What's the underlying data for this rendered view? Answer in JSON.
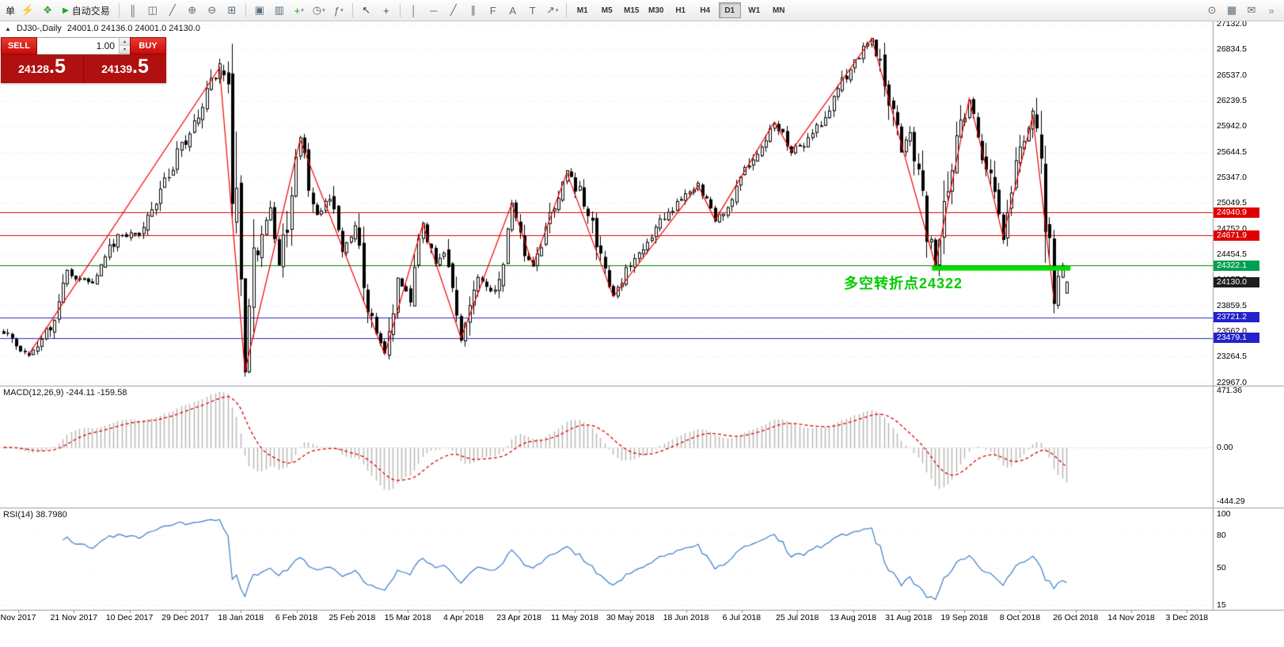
{
  "toolbar": {
    "order_label": "单",
    "autotrade_label": "自动交易",
    "timeframes": [
      "M1",
      "M5",
      "M15",
      "M30",
      "H1",
      "H4",
      "D1",
      "W1",
      "MN"
    ],
    "active_timeframe": "D1",
    "items": [
      {
        "type": "label",
        "name": "order-menu-label",
        "text": "单"
      },
      {
        "type": "icon",
        "name": "new-order-icon",
        "glyph": "⚡",
        "color": "#d09000"
      },
      {
        "type": "icon",
        "name": "expert-advisors-icon",
        "glyph": "❖",
        "color": "#3aa13a"
      },
      {
        "type": "autotrade",
        "name": "autotrade-button",
        "glyph": "▶",
        "color": "#18a818"
      },
      {
        "type": "sep"
      },
      {
        "type": "icon",
        "name": "bar-chart-icon",
        "glyph": "║",
        "color": "#5a6b7a"
      },
      {
        "type": "icon",
        "name": "candlestick-chart-icon",
        "glyph": "◫",
        "color": "#5a6b7a"
      },
      {
        "type": "icon",
        "name": "line-chart-icon",
        "glyph": "╱",
        "color": "#5a6b7a"
      },
      {
        "type": "icon",
        "name": "zoom-in-icon",
        "glyph": "⊕",
        "color": "#5a6b7a"
      },
      {
        "type": "icon",
        "name": "zoom-out-icon",
        "glyph": "⊖",
        "color": "#5a6b7a"
      },
      {
        "type": "icon",
        "name": "tile-windows-icon",
        "glyph": "⊞",
        "color": "#5a6b7a"
      },
      {
        "type": "sep"
      },
      {
        "type": "icon",
        "name": "arrange-auto-icon",
        "glyph": "▣",
        "color": "#5a6b7a"
      },
      {
        "type": "icon",
        "name": "arrange-windows-icon",
        "glyph": "▥",
        "color": "#5a6b7a"
      },
      {
        "type": "icon",
        "name": "new-chart-icon",
        "glyph": "+",
        "color": "#18a818",
        "caret": true
      },
      {
        "type": "icon",
        "name": "periods-icon",
        "glyph": "◷",
        "color": "#5a6b7a",
        "caret": true
      },
      {
        "type": "icon",
        "name": "indicators-icon",
        "glyph": "ƒ",
        "color": "#5a6b7a",
        "caret": true
      },
      {
        "type": "sep"
      },
      {
        "type": "icon",
        "name": "cursor-icon",
        "glyph": "↖",
        "color": "#444444"
      },
      {
        "type": "icon",
        "name": "crosshair-icon",
        "glyph": "+",
        "color": "#444444"
      },
      {
        "type": "sep"
      },
      {
        "type": "icon",
        "name": "vertical-line-icon",
        "glyph": "│",
        "color": "#5a6b7a"
      },
      {
        "type": "icon",
        "name": "horizontal-line-icon",
        "glyph": "─",
        "color": "#5a6b7a"
      },
      {
        "type": "icon",
        "name": "trendline-icon",
        "glyph": "╱",
        "color": "#5a6b7a"
      },
      {
        "type": "icon",
        "name": "channel-icon",
        "glyph": "∥",
        "color": "#5a6b7a"
      },
      {
        "type": "icon",
        "name": "fibonacci-icon",
        "glyph": "F",
        "color": "#5a6b7a"
      },
      {
        "type": "icon",
        "name": "text-icon",
        "glyph": "A",
        "color": "#5a6b7a"
      },
      {
        "type": "icon",
        "name": "label-icon",
        "glyph": "T",
        "color": "#5a6b7a"
      },
      {
        "type": "icon",
        "name": "arrows-icon",
        "glyph": "↗",
        "color": "#5a6b7a",
        "caret": true
      },
      {
        "type": "sep"
      },
      {
        "type": "timeframes"
      },
      {
        "type": "spacer"
      },
      {
        "type": "icon",
        "name": "search-icon",
        "glyph": "⊙",
        "color": "#5a6b7a"
      },
      {
        "type": "icon",
        "name": "data-window-icon",
        "glyph": "▦",
        "color": "#5a6b7a"
      },
      {
        "type": "icon",
        "name": "chat-icon",
        "glyph": "✉",
        "color": "#5a6b7a"
      },
      {
        "type": "icon",
        "name": "toolbar-overflow-icon",
        "glyph": "»",
        "color": "#888888"
      }
    ]
  },
  "chart_header": {
    "toggle_icon": "▲",
    "symbol": "DJ30-,Daily",
    "ohlc": "24001.0 24136.0 24001.0 24130.0"
  },
  "trade_panel": {
    "sell_label": "SELL",
    "buy_label": "BUY",
    "volume": "1.00",
    "sell_price_small": "24128",
    "sell_price_big": ".5",
    "buy_price_small": "24139",
    "buy_price_big": ".5"
  },
  "annotation": {
    "text": "多空转折点24322",
    "color": "#00cc00"
  },
  "indicators": {
    "macd_label": "MACD(12,26,9) -244.11 -159.58",
    "rsi_label": "RSI(14) 38.7980"
  },
  "chart_data": {
    "type": "candlestick",
    "symbol": "DJ30-",
    "timeframe": "Daily",
    "last_candle": {
      "open": 24001.0,
      "high": 24136.0,
      "low": 24001.0,
      "close": 24130.0
    },
    "bid": 24128.5,
    "ask": 24139.5,
    "candle_count": 252,
    "price_path_anchors": [
      [
        0,
        23560
      ],
      [
        3,
        23400
      ],
      [
        6,
        23290
      ],
      [
        10,
        23510
      ],
      [
        15,
        24230
      ],
      [
        21,
        24100
      ],
      [
        27,
        24700
      ],
      [
        32,
        24660
      ],
      [
        37,
        25200
      ],
      [
        45,
        26000
      ],
      [
        51,
        26620
      ],
      [
        53,
        26200
      ],
      [
        55,
        24700
      ],
      [
        57,
        23100
      ],
      [
        59,
        24450
      ],
      [
        63,
        24980
      ],
      [
        65,
        24300
      ],
      [
        70,
        25780
      ],
      [
        74,
        24900
      ],
      [
        77,
        25140
      ],
      [
        80,
        24520
      ],
      [
        83,
        24740
      ],
      [
        87,
        23620
      ],
      [
        90,
        23290
      ],
      [
        93,
        24080
      ],
      [
        96,
        23990
      ],
      [
        99,
        24800
      ],
      [
        102,
        24310
      ],
      [
        104,
        24520
      ],
      [
        108,
        23480
      ],
      [
        112,
        24180
      ],
      [
        116,
        24010
      ],
      [
        120,
        25040
      ],
      [
        123,
        24520
      ],
      [
        125,
        24330
      ],
      [
        129,
        24900
      ],
      [
        133,
        25400
      ],
      [
        137,
        25080
      ],
      [
        144,
        23960
      ],
      [
        148,
        24330
      ],
      [
        152,
        24580
      ],
      [
        156,
        24880
      ],
      [
        160,
        25080
      ],
      [
        164,
        25250
      ],
      [
        168,
        24850
      ],
      [
        172,
        25060
      ],
      [
        176,
        25480
      ],
      [
        182,
        25990
      ],
      [
        186,
        25650
      ],
      [
        190,
        25760
      ],
      [
        194,
        26060
      ],
      [
        198,
        26440
      ],
      [
        202,
        26740
      ],
      [
        205,
        26960
      ],
      [
        207,
        26680
      ],
      [
        209,
        26280
      ],
      [
        212,
        25640
      ],
      [
        214,
        25890
      ],
      [
        217,
        25020
      ],
      [
        220,
        24330
      ],
      [
        223,
        25280
      ],
      [
        226,
        25880
      ],
      [
        228,
        26260
      ],
      [
        230,
        25890
      ],
      [
        233,
        25310
      ],
      [
        236,
        24660
      ],
      [
        238,
        25280
      ],
      [
        241,
        25800
      ],
      [
        243,
        26060
      ],
      [
        245,
        25380
      ],
      [
        247,
        24480
      ],
      [
        248,
        23930
      ],
      [
        250,
        24340
      ],
      [
        251,
        24130
      ]
    ],
    "zigzag_points": [
      [
        6,
        23290
      ],
      [
        51,
        26620
      ],
      [
        57,
        23100
      ],
      [
        70,
        25780
      ],
      [
        90,
        23290
      ],
      [
        99,
        24800
      ],
      [
        108,
        23480
      ],
      [
        120,
        25040
      ],
      [
        125,
        24330
      ],
      [
        133,
        25400
      ],
      [
        144,
        23960
      ],
      [
        164,
        25250
      ],
      [
        168,
        24850
      ],
      [
        182,
        25990
      ],
      [
        186,
        25650
      ],
      [
        205,
        26960
      ],
      [
        220,
        24330
      ],
      [
        228,
        26260
      ],
      [
        236,
        24660
      ],
      [
        243,
        26060
      ],
      [
        248,
        23930
      ]
    ],
    "hlines": [
      {
        "price": 24940.9,
        "color": "#e00000"
      },
      {
        "price": 24671.9,
        "color": "#e00000"
      },
      {
        "price": 24322.1,
        "color": "#008000"
      },
      {
        "price": 23721.2,
        "color": "#2828c8"
      },
      {
        "price": 23479.1,
        "color": "#2828c8"
      }
    ],
    "highlight_segment": {
      "price": 24290,
      "from_bar": 219.5,
      "to_bar": 252.2,
      "color": "#00dd00",
      "thickness": 6
    },
    "price_axis_labels": [
      27132.0,
      26834.5,
      26537.0,
      26239.5,
      25942.0,
      25644.5,
      25347.0,
      25049.5,
      24752.0,
      24454.5,
      24157.0,
      23859.5,
      23562.0,
      23264.5,
      22967.0
    ],
    "price_marker_boxes": [
      {
        "label": "24940.9",
        "price": 24940.9,
        "color": "#e00000"
      },
      {
        "label": "24671.9",
        "price": 24671.9,
        "color": "#e00000"
      },
      {
        "label": "24322.1",
        "price": 24322.1,
        "color": "#00a050"
      },
      {
        "label": "24130.0",
        "price": 24130.0,
        "color": "#1e1e1e"
      },
      {
        "label": "23721.2",
        "price": 23721.2,
        "color": "#2222cc"
      },
      {
        "label": "23479.1",
        "price": 23479.1,
        "color": "#2222cc"
      }
    ],
    "macd": {
      "fast": 12,
      "slow": 26,
      "signal": 9,
      "current_macd": -244.11,
      "current_signal": -159.58,
      "axis_labels": [
        {
          "value": 471.36,
          "text": "471.36"
        },
        {
          "value": 0,
          "text": "0.00"
        },
        {
          "value": -444.29,
          "text": "-444.29"
        }
      ]
    },
    "rsi": {
      "period": 14,
      "current": 38.798,
      "axis_labels": [
        {
          "value": 100,
          "text": "100"
        },
        {
          "value": 80,
          "text": "80"
        },
        {
          "value": 50,
          "text": "50"
        },
        {
          "value": 15,
          "text": "15"
        }
      ]
    },
    "date_labels": [
      "Nov 2017",
      "21 Nov 2017",
      "10 Dec 2017",
      "29 Dec 2017",
      "18 Jan 2018",
      "6 Feb 2018",
      "25 Feb 2018",
      "15 Mar 2018",
      "4 Apr 2018",
      "23 Apr 2018",
      "11 May 2018",
      "30 May 2018",
      "18 Jun 2018",
      "6 Jul 2018",
      "25 Jul 2018",
      "13 Aug 2018",
      "31 Aug 2018",
      "19 Sep 2018",
      "8 Oct 2018",
      "26 Oct 2018",
      "14 Nov 2018",
      "3 Dec 2018"
    ]
  }
}
